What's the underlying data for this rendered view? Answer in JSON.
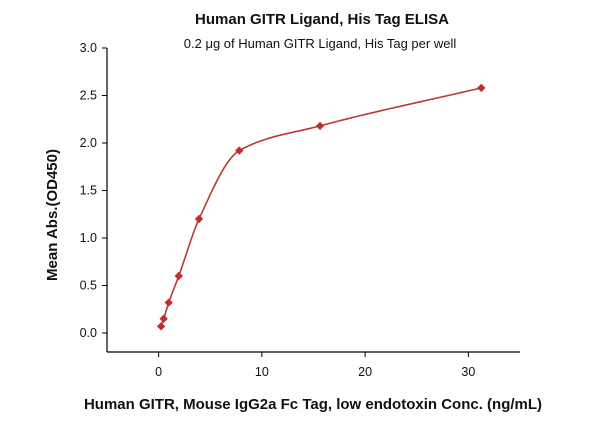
{
  "chart_data": {
    "type": "scatter",
    "title": "Human GITR Ligand, His Tag ELISA",
    "subtitle": "0.2 μg of Human GITR Ligand, His Tag per well",
    "xlabel": "Human GITR, Mouse IgG2a Fc Tag, low endotoxin Conc. (ng/mL)",
    "ylabel": "Mean Abs.(OD450)",
    "xlim": [
      -5,
      35
    ],
    "ylim": [
      -0.2,
      3.0
    ],
    "xticks": [
      0,
      10,
      20,
      30
    ],
    "yticks": [
      0.0,
      0.5,
      1.0,
      1.5,
      2.0,
      2.5,
      3.0
    ],
    "grid": false,
    "legend": "none",
    "series": [
      {
        "x": [
          0.24,
          0.49,
          0.98,
          1.95,
          3.91,
          7.81,
          15.63,
          31.25
        ],
        "y": [
          0.07,
          0.15,
          0.32,
          0.6,
          1.2,
          1.92,
          2.18,
          2.58
        ],
        "marker": "diamond",
        "fit": "curve"
      }
    ],
    "colors": {
      "marker": "#c0302a",
      "curve": "#b83a30",
      "axis": "#000000"
    }
  }
}
